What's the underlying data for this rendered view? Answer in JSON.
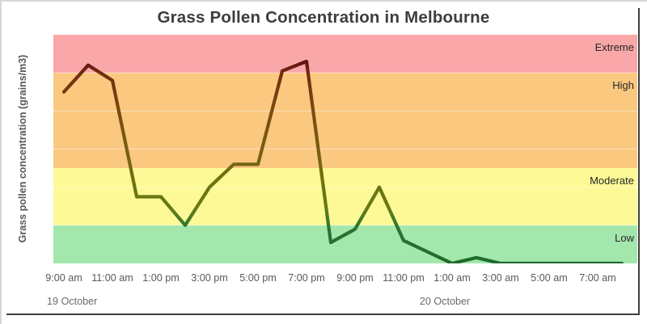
{
  "chart_data": {
    "type": "line",
    "title": "Grass Pollen Concentration in Melbourne",
    "ylabel": "Grass pollen concentration (grains/m3)",
    "xlabel": "",
    "ylim": [
      0,
      120
    ],
    "grid_interval": 20,
    "grid_on": true,
    "legend": "none",
    "x": [
      "9:00 am",
      "10:00 am",
      "11:00 am",
      "12:00 pm",
      "1:00 pm",
      "2:00 pm",
      "3:00 pm",
      "4:00 pm",
      "5:00 pm",
      "6:00 pm",
      "7:00 pm",
      "8:00 pm",
      "9:00 pm",
      "10:00 pm",
      "11:00 pm",
      "12:00 am",
      "1:00 am",
      "2:00 am",
      "3:00 am",
      "4:00 am",
      "5:00 am",
      "6:00 am",
      "7:00 am",
      "8:00 am"
    ],
    "values": [
      90,
      104,
      96,
      35,
      35,
      20,
      40,
      52,
      52,
      101,
      106,
      11,
      18,
      40,
      12,
      6,
      0,
      3,
      0,
      0,
      0,
      0,
      0,
      0
    ],
    "x_tick_labels": [
      "9:00 am",
      "11:00 am",
      "1:00 pm",
      "3:00 pm",
      "5:00 pm",
      "7:00 pm",
      "9:00 pm",
      "11:00 pm",
      "1:00 am",
      "3:00 am",
      "5:00 am",
      "7:00 am"
    ],
    "date_labels": [
      "19 October",
      "20 October"
    ],
    "threshold_bands": [
      {
        "label": "Extreme",
        "min": 100,
        "max": 120,
        "color": "#f9a7a8"
      },
      {
        "label": "High",
        "min": 50,
        "max": 100,
        "color": "#fbc880"
      },
      {
        "label": "Moderate",
        "min": 20,
        "max": 50,
        "color": "#fdf996"
      },
      {
        "label": "Low",
        "min": 0,
        "max": 20,
        "color": "#a3e7ad"
      }
    ],
    "line_color_by_height": {
      "extreme": "#5e1111",
      "high": "#7b4b10",
      "moderate": "#6f7011",
      "low": "#1d6b2c"
    }
  }
}
